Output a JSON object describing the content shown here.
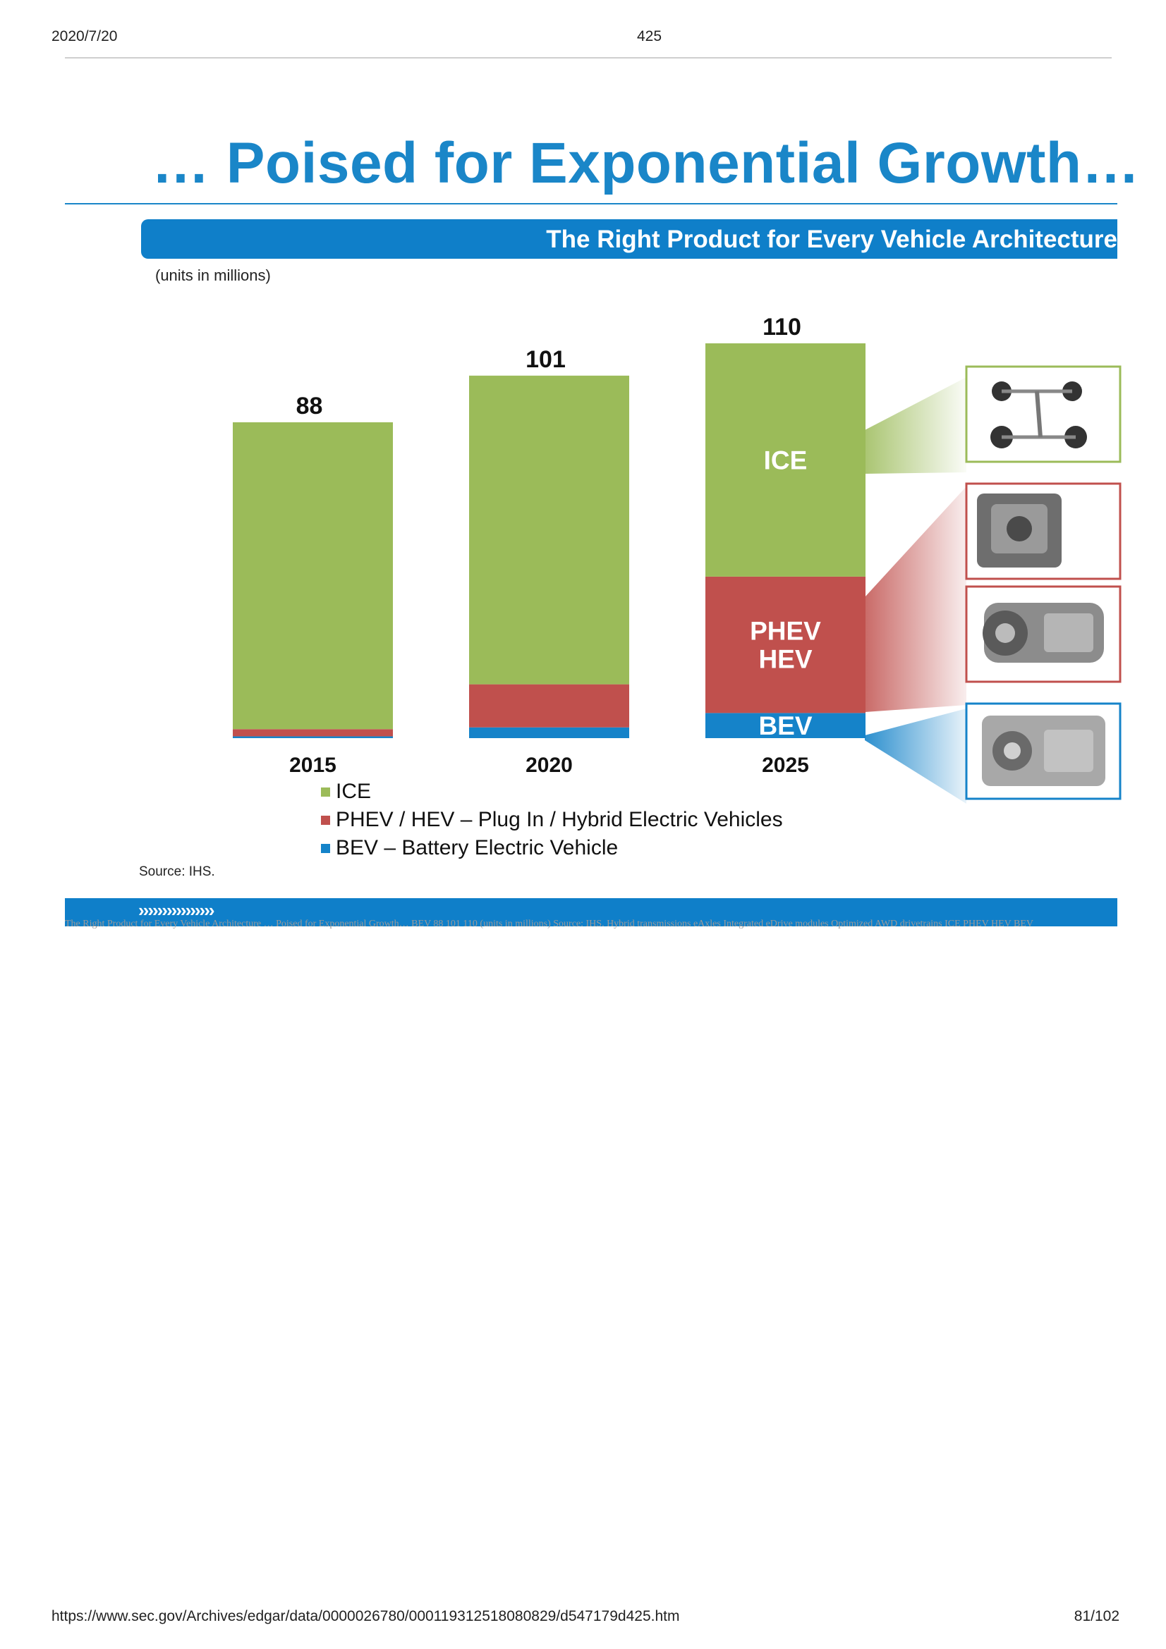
{
  "header": {
    "date": "2020/7/20",
    "doc_number": "425"
  },
  "slide": {
    "title": "… Poised for Exponential Growth…",
    "banner": "The Right Product for Every Vehicle Architecture",
    "units_note": "(units in millions)",
    "source": "Source: IHS.",
    "footer_chevrons": "››››››››››››››››",
    "alt_text": "The Right Product for Every Vehicle Architecture … Poised for Exponential Growth… BEV 88 101 110 (units in millions) Source: IHS. Hybrid transmissions eAxles Integrated eDrive modules Optimized AWD drivetrains ICE PHEV HEV BEV"
  },
  "chart_data": {
    "type": "bar",
    "stacked": true,
    "categories": [
      "2015",
      "2020",
      "2025"
    ],
    "totals": [
      88,
      101,
      110
    ],
    "series": [
      {
        "name": "BEV",
        "color": "#1583c9",
        "values": [
          0.5,
          3,
          7
        ]
      },
      {
        "name": "PHEV / HEV",
        "color": "#c0504d",
        "values": [
          2,
          12,
          38
        ]
      },
      {
        "name": "ICE",
        "color": "#9bbb59",
        "values": [
          85.5,
          86,
          65
        ]
      }
    ],
    "segment_labels": {
      "ICE": "ICE",
      "PHEV / HEV": "PHEV\nHEV",
      "BEV": "BEV"
    },
    "legend": [
      {
        "label": "ICE",
        "color": "#9bbb59"
      },
      {
        "label": "PHEV / HEV – Plug In / Hybrid Electric Vehicles",
        "color": "#c0504d"
      },
      {
        "label": "BEV – Battery Electric Vehicle",
        "color": "#1583c9"
      }
    ],
    "ylim": [
      0,
      110
    ]
  },
  "product_images": [
    {
      "name": "awd-drivetrain-image",
      "color": "#9bbb59"
    },
    {
      "name": "hybrid-transmission-image",
      "color": "#c0504d"
    },
    {
      "name": "eaxle-image",
      "color": "#c0504d"
    },
    {
      "name": "edrive-module-image",
      "color": "#1583c9"
    }
  ],
  "footer": {
    "url": "https://www.sec.gov/Archives/edgar/data/0000026780/000119312518080829/d547179d425.htm",
    "page": "81/102"
  }
}
